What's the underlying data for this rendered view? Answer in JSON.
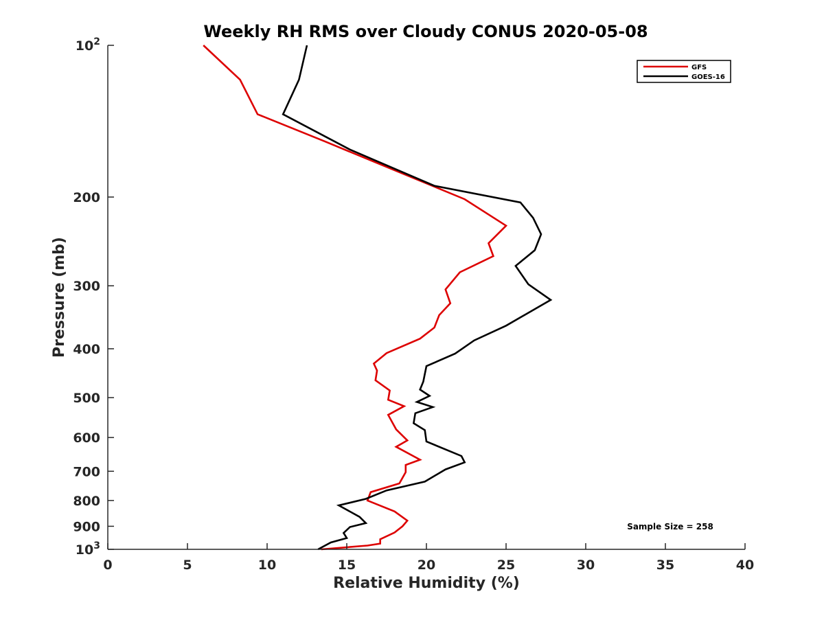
{
  "chart_data": {
    "type": "line",
    "title": "Weekly RH RMS over Cloudy CONUS 2020-05-08",
    "xlabel": "Relative Humidity (%)",
    "ylabel": "Pressure (mb)",
    "xlim": [
      0,
      40
    ],
    "ylim": [
      100,
      1000
    ],
    "y_scale": "log",
    "y_reversed": true,
    "grid": false,
    "legend_position": "top-right",
    "x_ticks": [
      0,
      5,
      10,
      15,
      20,
      25,
      30,
      35,
      40
    ],
    "x_tick_labels": [
      "0",
      "5",
      "10",
      "15",
      "20",
      "25",
      "30",
      "35",
      "40"
    ],
    "y_ticks": [
      100,
      200,
      300,
      400,
      500,
      600,
      700,
      800,
      900,
      1000
    ],
    "y_tick_labels": [
      {
        "base": "10",
        "exp": "2"
      },
      {
        "base": "200",
        "exp": ""
      },
      {
        "base": "300",
        "exp": ""
      },
      {
        "base": "400",
        "exp": ""
      },
      {
        "base": "500",
        "exp": ""
      },
      {
        "base": "600",
        "exp": ""
      },
      {
        "base": "700",
        "exp": ""
      },
      {
        "base": "800",
        "exp": ""
      },
      {
        "base": "900",
        "exp": ""
      },
      {
        "base": "10",
        "exp": "3"
      }
    ],
    "annotation": "Sample Size = 258",
    "series": [
      {
        "name": "GFS",
        "color": "#dd0000",
        "x": [
          6.0,
          8.3,
          9.4,
          13.6,
          22.4,
          25.0,
          23.9,
          24.2,
          22.1,
          21.2,
          21.5,
          20.8,
          20.5,
          19.6,
          17.5,
          16.7,
          16.9,
          16.8,
          17.7,
          17.6,
          18.6,
          17.6,
          18.1,
          18.8,
          18.1,
          19.6,
          18.7,
          18.7,
          18.3,
          16.5,
          16.3,
          18.0,
          18.8,
          18.5,
          18.0,
          17.1,
          17.1,
          16.3,
          13.4
        ],
        "y": [
          100,
          117,
          137,
          155,
          202,
          228,
          247,
          262,
          282,
          305,
          325,
          343,
          363,
          382,
          408,
          428,
          442,
          462,
          484,
          505,
          520,
          541,
          578,
          608,
          626,
          664,
          680,
          703,
          740,
          770,
          800,
          841,
          877,
          900,
          926,
          955,
          974,
          983,
          1000
        ]
      },
      {
        "name": "GOES-16",
        "color": "#000000",
        "x": [
          12.5,
          12.0,
          11.0,
          15.2,
          20.5,
          25.9,
          26.7,
          27.2,
          26.8,
          25.6,
          26.4,
          27.8,
          25.0,
          23.0,
          21.8,
          20.0,
          19.8,
          19.6,
          20.2,
          19.4,
          20.4,
          19.3,
          19.2,
          19.9,
          20.0,
          22.2,
          22.4,
          21.2,
          19.9,
          17.5,
          16.2,
          14.5,
          15.8,
          16.2,
          15.2,
          14.8,
          15.0,
          14.0,
          13.2
        ],
        "y": [
          100,
          117,
          137,
          161,
          190,
          205,
          220,
          237,
          255,
          274,
          298,
          320,
          360,
          385,
          409,
          433,
          465,
          482,
          496,
          510,
          522,
          537,
          562,
          580,
          611,
          653,
          672,
          694,
          734,
          764,
          794,
          818,
          862,
          887,
          903,
          928,
          950,
          969,
          1000
        ]
      }
    ]
  }
}
